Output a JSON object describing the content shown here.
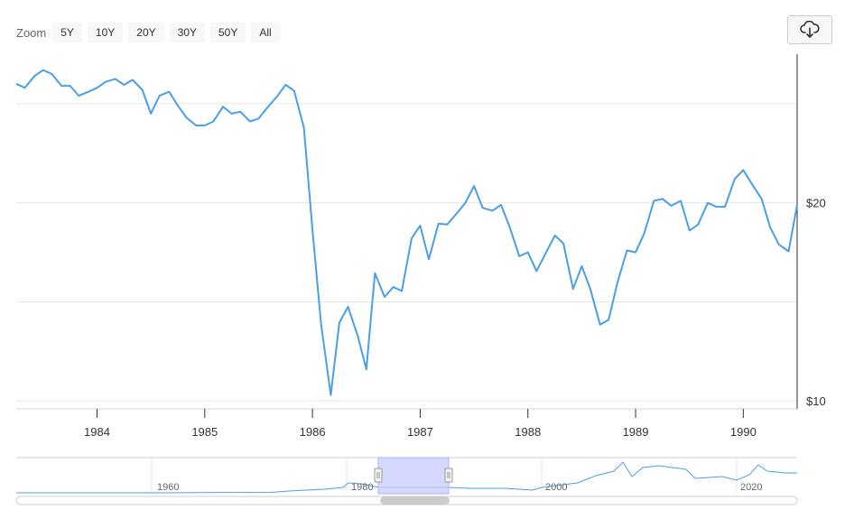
{
  "toolbar": {
    "zoom_label": "Zoom",
    "buttons": [
      "5Y",
      "10Y",
      "20Y",
      "30Y",
      "50Y",
      "All"
    ],
    "download_icon": "cloud-download-icon"
  },
  "colors": {
    "line": "#4a9fe8",
    "grid": "#e6e6e6",
    "navigator_mask": "#c8ccff",
    "navigator_outline": "#cccccc"
  },
  "chart_data": {
    "type": "line",
    "title": "",
    "xlabel": "",
    "ylabel": "",
    "y_axis_position": "right",
    "y_tick_labels": [
      "$10",
      "$20"
    ],
    "x_tick_labels": [
      "1984",
      "1985",
      "1986",
      "1987",
      "1988",
      "1989",
      "1990"
    ],
    "xlim": [
      1983.25,
      1990.5
    ],
    "ylim": [
      9.6,
      27.5
    ],
    "grid": true,
    "series": [
      {
        "x": [
          1983.25,
          1983.33,
          1983.42,
          1983.5,
          1983.58,
          1983.67,
          1983.75,
          1983.83,
          1983.92,
          1984.0,
          1984.08,
          1984.17,
          1984.25,
          1984.33,
          1984.42,
          1984.5,
          1984.58,
          1984.67,
          1984.75,
          1984.83,
          1984.92,
          1985.0,
          1985.08,
          1985.17,
          1985.25,
          1985.33,
          1985.42,
          1985.5,
          1985.58,
          1985.67,
          1985.75,
          1985.83,
          1985.92,
          1986.0,
          1986.08,
          1986.17,
          1986.25,
          1986.33,
          1986.42,
          1986.5,
          1986.58,
          1986.67,
          1986.75,
          1986.83,
          1986.92,
          1987.0,
          1987.08,
          1987.17,
          1987.25,
          1987.33,
          1987.42,
          1987.5,
          1987.58,
          1987.67,
          1987.75,
          1987.83,
          1987.92,
          1988.0,
          1988.08,
          1988.17,
          1988.25,
          1988.33,
          1988.42,
          1988.5,
          1988.58,
          1988.67,
          1988.75,
          1988.83,
          1988.92,
          1989.0,
          1989.08,
          1989.17,
          1989.25,
          1989.33,
          1989.42,
          1989.5,
          1989.58,
          1989.67,
          1989.75,
          1989.83,
          1989.92,
          1990.0,
          1990.08,
          1990.17,
          1990.25,
          1990.33,
          1990.42,
          1990.5
        ],
        "values": [
          26.0,
          25.8,
          26.4,
          26.7,
          26.5,
          25.9,
          25.9,
          25.4,
          25.6,
          25.8,
          26.1,
          26.25,
          25.95,
          26.2,
          25.7,
          24.5,
          25.4,
          25.6,
          24.9,
          24.3,
          23.9,
          23.9,
          24.1,
          24.85,
          24.5,
          24.6,
          24.1,
          24.25,
          24.8,
          25.35,
          25.95,
          25.65,
          23.8,
          18.65,
          13.9,
          10.3,
          13.95,
          14.75,
          13.3,
          11.6,
          16.45,
          15.25,
          15.75,
          15.55,
          18.2,
          18.85,
          17.15,
          18.95,
          18.9,
          19.4,
          20.0,
          20.85,
          19.75,
          19.6,
          19.9,
          18.8,
          17.3,
          17.5,
          16.55,
          17.5,
          18.35,
          17.95,
          15.65,
          16.8,
          15.65,
          13.85,
          14.1,
          15.95,
          17.6,
          17.5,
          18.45,
          20.1,
          20.2,
          19.85,
          20.1,
          18.6,
          18.9,
          20.0,
          19.8,
          19.8,
          21.2,
          21.65,
          20.95,
          20.2,
          18.75,
          17.9,
          17.55,
          19.9
        ]
      }
    ]
  },
  "navigator": {
    "tick_labels": [
      "1960",
      "1980",
      "2000",
      "2020"
    ],
    "range_selected": [
      1983.25,
      1990.5
    ]
  }
}
